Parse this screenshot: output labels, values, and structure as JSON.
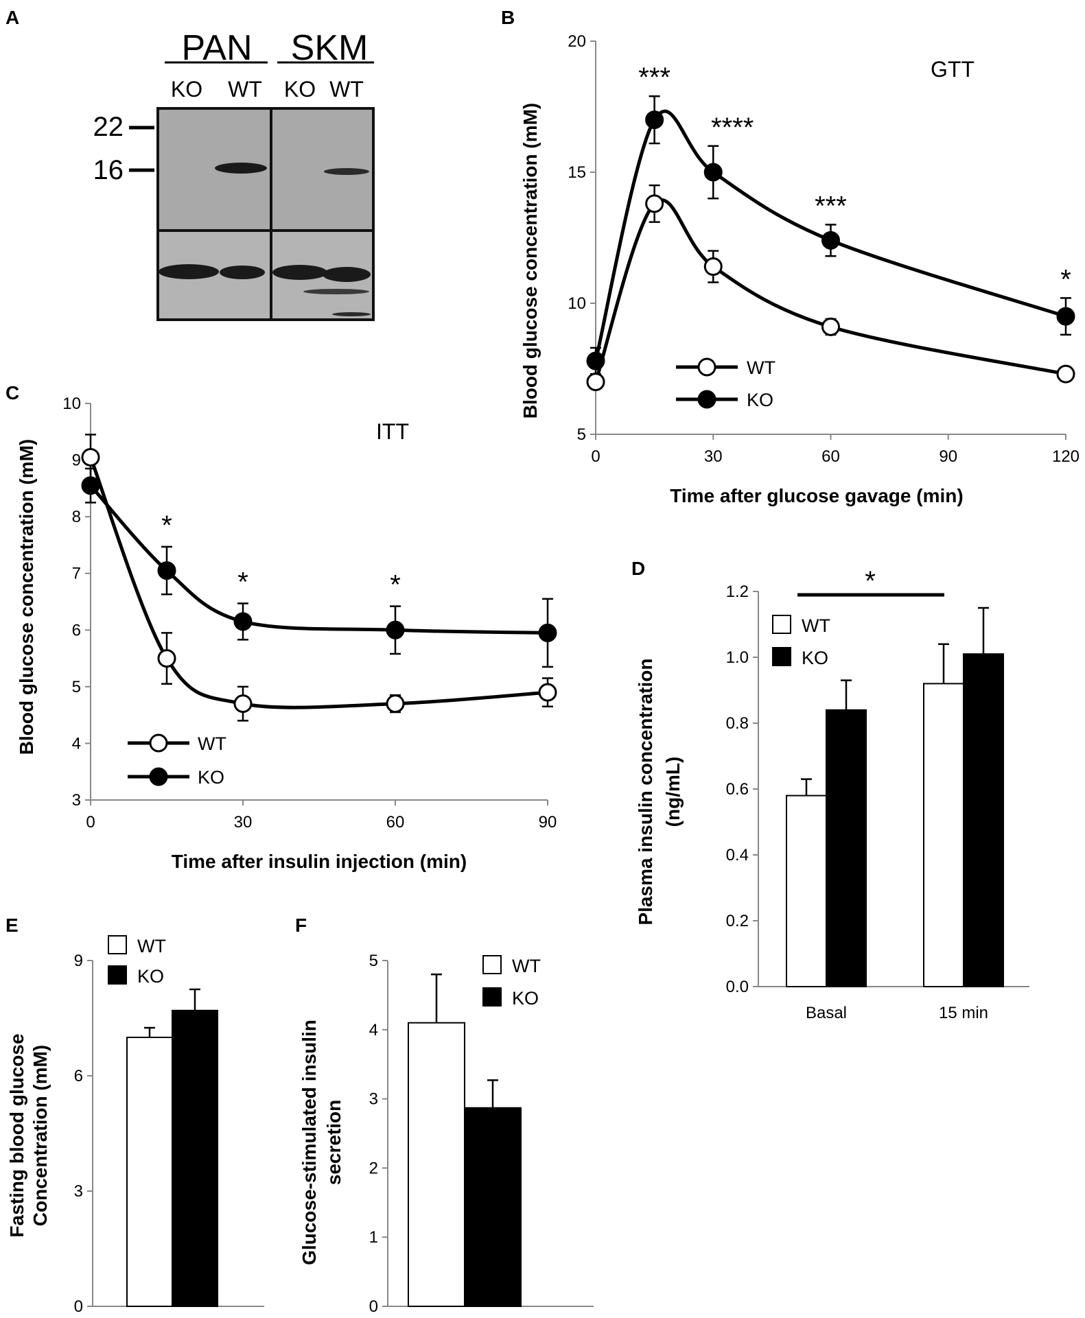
{
  "chart_data": [
    {
      "panel": "A",
      "type": "western-blot",
      "groups": [
        "PAN",
        "SKM"
      ],
      "lanes": [
        "KO",
        "WT",
        "KO",
        "WT"
      ],
      "markers": [
        "22",
        "16"
      ]
    },
    {
      "panel": "B",
      "type": "line",
      "title": "GTT",
      "xlabel": "Time after glucose gavage (min)",
      "ylabel": "Blood glucose concentration (mM)",
      "xlim": [
        0,
        120
      ],
      "ylim": [
        5,
        20
      ],
      "xticks": [
        "0",
        "30",
        "60",
        "90",
        "120"
      ],
      "yticks": [
        "5",
        "10",
        "15",
        "20"
      ],
      "series": [
        {
          "name": "WT",
          "x": [
            0,
            15,
            30,
            60,
            120
          ],
          "values": [
            7.0,
            13.8,
            11.4,
            9.1,
            7.3
          ],
          "err": [
            0.2,
            0.7,
            0.6,
            0.3,
            0.2
          ]
        },
        {
          "name": "KO",
          "x": [
            0,
            15,
            30,
            60,
            120
          ],
          "values": [
            7.8,
            17.0,
            15.0,
            12.4,
            9.5
          ],
          "err": [
            0.5,
            0.9,
            1.0,
            0.6,
            0.7
          ]
        }
      ],
      "annotations": [
        {
          "x": 15,
          "text": "***"
        },
        {
          "x": 30,
          "text": "****"
        },
        {
          "x": 60,
          "text": "***"
        },
        {
          "x": 120,
          "text": "*"
        }
      ]
    },
    {
      "panel": "C",
      "type": "line",
      "title": "ITT",
      "xlabel": "Time after insulin injection (min)",
      "ylabel": "Blood glucose concentration (mM)",
      "xlim": [
        0,
        90
      ],
      "ylim": [
        3,
        10
      ],
      "xticks": [
        "0",
        "30",
        "60",
        "90"
      ],
      "yticks": [
        "3",
        "4",
        "5",
        "6",
        "7",
        "8",
        "9",
        "10"
      ],
      "series": [
        {
          "name": "WT",
          "x": [
            0,
            15,
            30,
            60,
            90
          ],
          "values": [
            9.05,
            5.5,
            4.7,
            4.7,
            4.9
          ],
          "err": [
            0.4,
            0.45,
            0.3,
            0.15,
            0.25
          ]
        },
        {
          "name": "KO",
          "x": [
            0,
            15,
            30,
            60,
            90
          ],
          "values": [
            8.55,
            7.05,
            6.15,
            6.0,
            5.95
          ],
          "err": [
            0.3,
            0.42,
            0.32,
            0.42,
            0.6
          ]
        }
      ],
      "annotations": [
        {
          "x": 15,
          "text": "*"
        },
        {
          "x": 30,
          "text": "*"
        },
        {
          "x": 60,
          "text": "*"
        }
      ]
    },
    {
      "panel": "D",
      "type": "bar",
      "xlabel": "",
      "ylabel": "Plasma insulin concentration (ng/mL)",
      "ylabel_lines": [
        "Plasma insulin concentration",
        "(ng/mL)"
      ],
      "categories": [
        "Basal",
        "15 min"
      ],
      "ylim": [
        0,
        1.2
      ],
      "yticks": [
        "0.0",
        "0.2",
        "0.4",
        "0.6",
        "0.8",
        "1.0",
        "1.2"
      ],
      "series": [
        {
          "name": "WT",
          "values": [
            0.58,
            0.92
          ],
          "err": [
            0.05,
            0.12
          ]
        },
        {
          "name": "KO",
          "values": [
            0.84,
            1.01
          ],
          "err": [
            0.09,
            0.14
          ]
        }
      ],
      "annotations": [
        {
          "text": "*"
        }
      ]
    },
    {
      "panel": "E",
      "type": "bar",
      "ylabel_lines": [
        "Fasting blood glucose",
        "Concentration (mM)"
      ],
      "categories": [
        ""
      ],
      "ylim": [
        0,
        9
      ],
      "yticks": [
        "0",
        "3",
        "6",
        "9"
      ],
      "series": [
        {
          "name": "WT",
          "values": [
            7.0
          ],
          "err": [
            0.25
          ]
        },
        {
          "name": "KO",
          "values": [
            7.7
          ],
          "err": [
            0.55
          ]
        }
      ]
    },
    {
      "panel": "F",
      "type": "bar",
      "ylabel_lines": [
        "Glucose-stimulated insulin",
        "secretion"
      ],
      "categories": [
        ""
      ],
      "ylim": [
        0,
        5
      ],
      "yticks": [
        "0",
        "1",
        "2",
        "3",
        "4",
        "5"
      ],
      "series": [
        {
          "name": "WT",
          "values": [
            4.1
          ],
          "err": [
            0.7
          ]
        },
        {
          "name": "KO",
          "values": [
            2.87
          ],
          "err": [
            0.4
          ]
        }
      ]
    }
  ]
}
